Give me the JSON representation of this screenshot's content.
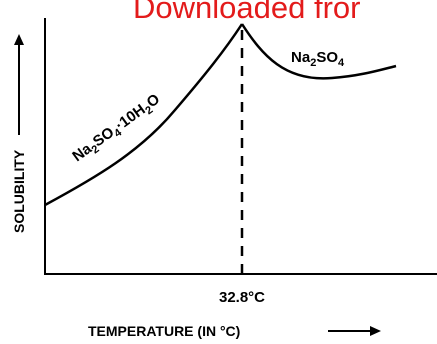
{
  "watermark": {
    "text": "Downloaded fror",
    "color": "#e31b1b"
  },
  "chart_data": {
    "type": "line",
    "title": "",
    "xlabel": "TEMPERATURE (IN °C)",
    "ylabel": "SOLUBILITY",
    "x_tick_labels": [
      "32.8°C"
    ],
    "transition_point": {
      "x": 32.8,
      "label": "32.8°C",
      "marker": "dashed vertical line"
    },
    "x_scale": "qualitative",
    "y_scale": "qualitative",
    "grid": false,
    "legend": "none",
    "series": [
      {
        "name": "Na2SO4·10H2O",
        "label_parts": [
          {
            "t": "Na"
          },
          {
            "t": "2",
            "sub": true
          },
          {
            "t": "SO"
          },
          {
            "t": "4",
            "sub": true
          },
          {
            "t": "·10H"
          },
          {
            "t": "2",
            "sub": true
          },
          {
            "t": "O"
          }
        ],
        "trend": "increasing, rising steeply up to the transition at 32.8°C"
      },
      {
        "name": "Na2SO4",
        "label_parts": [
          {
            "t": "Na"
          },
          {
            "t": "2",
            "sub": true
          },
          {
            "t": "SO"
          },
          {
            "t": "4",
            "sub": true
          }
        ],
        "trend": "decreasing slightly after 32.8°C, then levelling off"
      }
    ],
    "axis_arrows": true,
    "line_color": "#000000"
  }
}
